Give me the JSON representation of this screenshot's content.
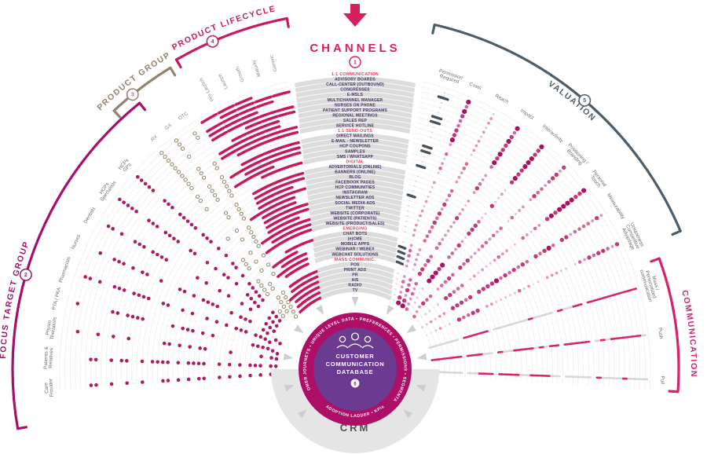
{
  "header": {
    "arrow_icon": "down-arrow",
    "channels_label": "CHANNELS",
    "channels_badge": "1"
  },
  "center": {
    "ring_text_top": "CUSTOMER JOURNEYS • UNIQUE LEVEL DATA • PREFERENCES • PERMISSIONS • SEGMENTATION",
    "ring_text_bottom": "ADOPTION LADDER • KPIs",
    "db_lines": [
      "CUSTOMER",
      "COMMUNICATION",
      "DATABASE"
    ],
    "db_badge": "6",
    "people_icon": "people-group-icon",
    "crm_label": "CRM"
  },
  "colors": {
    "magenta": "#ad0e66",
    "crimson": "#c8195f",
    "pink_accent": "#d61f5f",
    "header_red": "#e63a5f",
    "taupe": "#93836f",
    "slate": "#4d5d68",
    "band_grey": "#dcdcdc",
    "arc_grey": "#ededed",
    "row_text": "#443465",
    "purple": "#6a3b90",
    "crm_grey": "#e5e5e5",
    "dot_grey": "#d7d7d7"
  },
  "chart_data": {
    "type": "radial-matrix",
    "encoding": {
      "f": "focus target groups 1=dot (order: HCPs GPs, HCPs Specialists, Dentists, Nurses, Pharmacists, PTA / PKA, Physio Therapists, Patients & Relatives, Care Provider)",
      "p": "product group 1=dot (order: RX, GX, OTC)",
      "c": "product lifecycle 1=bar (order: Pre-Launch, Launch, Growth, Maturity, Generic)",
      "pm": "permission required (1=slate bar, 0=grey tick)",
      "v": "valuation scores 0-5 (order: Costs, Reach, Impact, Interactivity, Positioning / Branding, Personal Touch, Measurability, Uniqueness / Competitive Advantage)",
      "m": "communication 1=magenta dash, 0=grey dash (order: Mass / Personalized communication, Push, Pull)"
    },
    "sections": [
      {
        "id": "focus",
        "title": "FOCUS TARGET GROUP",
        "badge": "2",
        "color": "#a60f6b",
        "label_color": "#6e6e6e",
        "arc": [
          -100,
          -39
        ],
        "badge_angle": -74,
        "title_mid": -78.5,
        "spokes": [
          {
            "label": "HCPs GPs",
            "lines": [
              "HCPs",
              "GPs"
            ],
            "angle": -48.5
          },
          {
            "label": "HCPs Specialists",
            "lines": [
              "HCPs",
              "Specialists"
            ],
            "angle": -54.2
          },
          {
            "label": "Dentists",
            "lines": [
              "Dentists"
            ],
            "angle": -59.9
          },
          {
            "label": "Nurses",
            "lines": [
              "Nurses"
            ],
            "angle": -65.5
          },
          {
            "label": "Pharmacists",
            "lines": [
              "Pharmacists"
            ],
            "angle": -71.1
          },
          {
            "label": "PTA / PKA",
            "lines": [
              "PTA / PKA"
            ],
            "angle": -76.7
          },
          {
            "label": "Physio Therapists",
            "lines": [
              "Physio",
              "Therapists"
            ],
            "angle": -82.3
          },
          {
            "label": "Patients & Relatives",
            "lines": [
              "Patients &",
              "Relatives"
            ],
            "angle": -87.9
          },
          {
            "label": "Care Provider",
            "lines": [
              "Care",
              "Provider"
            ],
            "angle": -93.5
          }
        ]
      },
      {
        "id": "product",
        "title": "PRODUCT GROUP",
        "badge": "3",
        "color": "#93836f",
        "label_color": "#93836f",
        "arc": [
          -43,
          -31.5
        ],
        "badge_angle": -39,
        "title_mid": -37.5,
        "spokes": [
          {
            "label": "RX",
            "lines": [
              "RX"
            ],
            "angle": -41
          },
          {
            "label": "GX",
            "lines": [
              "GX"
            ],
            "angle": -37.6
          },
          {
            "label": "OTC",
            "lines": [
              "OTC"
            ],
            "angle": -34.2
          }
        ]
      },
      {
        "id": "lifecycle",
        "title": "PRODUCT LIFECYCLE",
        "badge": "4",
        "color": "#c8195f",
        "label_color": "#8c8c8c",
        "arc": [
          -30,
          -11
        ],
        "badge_angle": -23.5,
        "title_mid": -21,
        "spokes": [
          {
            "label": "Pre-Launch",
            "lines": [
              "Pre-Launch"
            ],
            "angle": -28
          },
          {
            "label": "Launch",
            "lines": [
              "Launch"
            ],
            "angle": -24.7
          },
          {
            "label": "Growth",
            "lines": [
              "Growth"
            ],
            "angle": -21.4
          },
          {
            "label": "Maturity",
            "lines": [
              "Maturity"
            ],
            "angle": -18.2
          },
          {
            "label": "Generic",
            "lines": [
              "Generic"
            ],
            "angle": -15
          }
        ]
      },
      {
        "id": "valuation",
        "title": "VALUATION",
        "badge": "5",
        "color": "#4d5d68",
        "label_color": "#6e6e6e",
        "arc": [
          13,
          67
        ],
        "badge_angle": 40.5,
        "title_mid": 39,
        "spokes": [
          {
            "label": "Permission Required",
            "lines": [
              "Permission",
              "Required"
            ],
            "angle": 18
          },
          {
            "label": "Costs",
            "lines": [
              "Costs"
            ],
            "angle": 23
          },
          {
            "label": "Reach",
            "lines": [
              "Reach"
            ],
            "angle": 28.5
          },
          {
            "label": "Impact",
            "lines": [
              "Impact"
            ],
            "angle": 34
          },
          {
            "label": "Interactivity",
            "lines": [
              "Interactivity"
            ],
            "angle": 40
          },
          {
            "label": "Positioning / Branding",
            "lines": [
              "Positioning /",
              "Branding"
            ],
            "angle": 46
          },
          {
            "label": "Personal Touch",
            "lines": [
              "Personal",
              "Touch"
            ],
            "angle": 52
          },
          {
            "label": "Measurability",
            "lines": [
              "Measurability"
            ],
            "angle": 58
          },
          {
            "label": "Uniqueness / Competitive Advantage",
            "lines": [
              "Uniqueness",
              "Competitive",
              "Advantage"
            ],
            "angle": 64.5
          }
        ]
      },
      {
        "id": "communication",
        "title": "COMMUNICATION",
        "badge": null,
        "color": "#d6216b",
        "label_color": "#6e6e6e",
        "arc": [
          70,
          94
        ],
        "badge_angle": null,
        "title_mid": 84,
        "spokes": [
          {
            "label": "Mass / Personalized communication",
            "lines": [
              "Mass /",
              "Personalized",
              "communication"
            ],
            "angle": 74
          },
          {
            "label": "Push",
            "lines": [
              "Push"
            ],
            "angle": 83.3
          },
          {
            "label": "Pull",
            "lines": [
              "Pull"
            ],
            "angle": 92
          }
        ]
      }
    ],
    "rows": [
      {
        "l": "1:1 COMMUNICATION",
        "h": 1
      },
      {
        "l": "ADVISORY BOARDS",
        "f": "110000000",
        "p": "110",
        "c": "11100",
        "pm": 0,
        "v": "51554524",
        "m": "100"
      },
      {
        "l": "CALL-CENTER (OUTBOUND)",
        "f": "111011000",
        "p": "111",
        "c": "01111",
        "pm": 1,
        "v": "32342442",
        "m": "110"
      },
      {
        "l": "CONGRESSES",
        "f": "111110100",
        "p": "111",
        "c": "11110",
        "pm": 0,
        "v": "52444423",
        "m": "110"
      },
      {
        "l": "E-MSLS",
        "f": "110000000",
        "p": "100",
        "c": "11100",
        "pm": 0,
        "v": "41554534",
        "m": "110"
      },
      {
        "l": "MULTICHANNEL MANAGER",
        "f": "111010000",
        "p": "110",
        "c": "11111",
        "pm": 0,
        "v": "32453534",
        "m": "111"
      },
      {
        "l": "NURSES ON PHONE",
        "f": "000100011",
        "p": "100",
        "c": "00111",
        "pm": 1,
        "v": "31452533",
        "m": "110"
      },
      {
        "l": "PATIENT SUPPORT PROGRAMS",
        "f": "000100111",
        "p": "100",
        "c": "01110",
        "pm": 1,
        "v": "42543534",
        "m": "110"
      },
      {
        "l": "REGIONAL MEETINGS",
        "f": "111110000",
        "p": "110",
        "c": "11110",
        "pm": 0,
        "v": "42443422",
        "m": "100"
      },
      {
        "l": "SALES REP",
        "f": "111011000",
        "p": "111",
        "c": "11111",
        "pm": 0,
        "v": "52554543",
        "m": "110"
      },
      {
        "l": "SERVICE HOTLINE",
        "f": "111111111",
        "p": "111",
        "c": "01111",
        "pm": 0,
        "v": "21342441",
        "m": "101"
      },
      {
        "l": "1:1 SEND-OUTS",
        "h": 1
      },
      {
        "l": "DIRECT MAILINGS",
        "f": "111111010",
        "p": "111",
        "c": "01111",
        "pm": 1,
        "v": "33212231",
        "m": "110"
      },
      {
        "l": "E-MAIL - NEWSLETTER",
        "f": "111111111",
        "p": "111",
        "c": "11111",
        "pm": 1,
        "v": "13222351",
        "m": "110"
      },
      {
        "l": "HCP COUPONS",
        "f": "111011000",
        "p": "011",
        "c": "01111",
        "pm": 0,
        "v": "22311142",
        "m": "010"
      },
      {
        "l": "SAMPLES",
        "f": "111011000",
        "p": "111",
        "c": "11100",
        "pm": 0,
        "v": "32413232",
        "m": "010"
      },
      {
        "l": "SMS / WHATSAPP",
        "f": "100100011",
        "p": "001",
        "c": "00111",
        "pm": 1,
        "v": "12241342",
        "m": "110"
      },
      {
        "l": "DIGITAL",
        "h": 1
      },
      {
        "l": "ADVERTORIALS (ONLINE)",
        "f": "110010010",
        "p": "011",
        "c": "01111",
        "pm": 0,
        "v": "23213131",
        "m": "010"
      },
      {
        "l": "BANNERS (ONLINE)",
        "f": "110010010",
        "p": "011",
        "c": "01111",
        "pm": 0,
        "v": "13112040",
        "m": "010"
      },
      {
        "l": "BLOG",
        "f": "100100111",
        "p": "001",
        "c": "01110",
        "pm": 0,
        "v": "12233232",
        "m": "001"
      },
      {
        "l": "FACEBOOK PAGES",
        "f": "000101111",
        "p": "001",
        "c": "01111",
        "pm": 0,
        "v": "14242241",
        "m": "011"
      },
      {
        "l": "HCP COMMUNITIES",
        "f": "111010000",
        "p": "110",
        "c": "11110",
        "pm": 1,
        "v": "22443333",
        "m": "101"
      },
      {
        "l": "INSTAGRAM",
        "f": "000101111",
        "p": "001",
        "c": "01110",
        "pm": 0,
        "v": "14243241",
        "m": "011"
      },
      {
        "l": "NEWSLETTER ADS",
        "f": "111011000",
        "p": "011",
        "c": "01111",
        "pm": 0,
        "v": "23212131",
        "m": "010"
      },
      {
        "l": "SOCIAL MEDIA ADS",
        "f": "000101111",
        "p": "001",
        "c": "01111",
        "pm": 0,
        "v": "24222151",
        "m": "010"
      },
      {
        "l": "TWITTER",
        "f": "110100010",
        "p": "001",
        "c": "01110",
        "pm": 0,
        "v": "13242241",
        "m": "011"
      },
      {
        "l": "WEBSITE (CORPORATE)",
        "f": "111111111",
        "p": "111",
        "c": "11111",
        "pm": 0,
        "v": "23224141",
        "m": "001"
      },
      {
        "l": "WEBSITE (PATIENTS)",
        "f": "000100111",
        "p": "100",
        "c": "01111",
        "pm": 0,
        "v": "23333242",
        "m": "001"
      },
      {
        "l": "WEBSITE (PRODUCT/SALES)",
        "f": "111011000",
        "p": "111",
        "c": "11111",
        "pm": 0,
        "v": "23334142",
        "m": "011"
      },
      {
        "l": "EMERGING",
        "h": 1
      },
      {
        "l": "CHAT BOTS",
        "f": "100110011",
        "p": "011",
        "c": "00111",
        "pm": 0,
        "v": "22353344",
        "m": "101"
      },
      {
        "l": "(e)CME",
        "f": "111000000",
        "p": "100",
        "c": "11100",
        "pm": 1,
        "v": "32444334",
        "m": "101"
      },
      {
        "l": "MOBILE APPS",
        "f": "110110111",
        "p": "101",
        "c": "01110",
        "pm": 1,
        "v": "32353343",
        "m": "111"
      },
      {
        "l": "WEBINAR / WEBEX",
        "f": "111110000",
        "p": "110",
        "c": "11110",
        "pm": 1,
        "v": "22453443",
        "m": "110"
      },
      {
        "l": "WEBCHAT SOLUTIONS",
        "f": "110110011",
        "p": "110",
        "c": "01110",
        "pm": 1,
        "v": "21452444",
        "m": "110"
      },
      {
        "l": "MASS COMMUNIC.",
        "h": 1
      },
      {
        "l": "POS",
        "f": "000011011",
        "p": "011",
        "c": "01111",
        "pm": 0,
        "v": "23313121",
        "m": "010"
      },
      {
        "l": "PRINT ADS",
        "f": "111111010",
        "p": "011",
        "c": "01111",
        "pm": 0,
        "v": "33203020",
        "m": "010"
      },
      {
        "l": "PR",
        "f": "111111111",
        "p": "111",
        "c": "11111",
        "pm": 0,
        "v": "24314112",
        "m": "010"
      },
      {
        "l": "AIS",
        "f": "111011000",
        "p": "111",
        "c": "01111",
        "pm": 0,
        "v": "22212121",
        "m": "010"
      },
      {
        "l": "RADIO",
        "f": "000101111",
        "p": "001",
        "c": "01111",
        "pm": 0,
        "v": "44202010",
        "m": "010"
      },
      {
        "l": "TV",
        "f": "000101111",
        "p": "001",
        "c": "01111",
        "pm": 0,
        "v": "55303010",
        "m": "010"
      }
    ]
  }
}
